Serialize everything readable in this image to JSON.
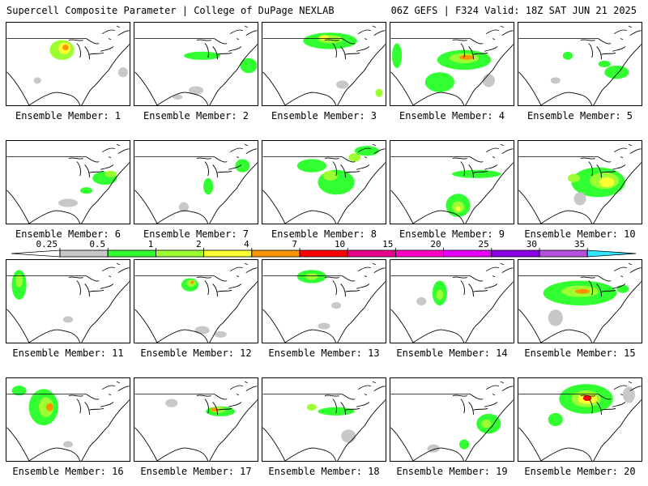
{
  "header": {
    "left": "Supercell Composite Parameter | College of DuPage NEXLAB",
    "right": "06Z GEFS | F324 Valid: 18Z SAT JUN 21 2025"
  },
  "colorbar": {
    "ticks": [
      "0.25",
      "0.5",
      "1",
      "2",
      "4",
      "7",
      "10",
      "15",
      "20",
      "25",
      "30",
      "35"
    ],
    "colors": [
      "#c8c8c8",
      "#32ff32",
      "#9bff32",
      "#ffff32",
      "#ff9600",
      "#ff0000",
      "#e6008c",
      "#ff00c8",
      "#e600ff",
      "#8c00e6",
      "#b450dc",
      "#32e6ff"
    ]
  },
  "members": [
    {
      "label": "Ensemble Member: 1",
      "blobs": [
        [
          0.45,
          0.33,
          0.1,
          0.12,
          2
        ],
        [
          0.47,
          0.31,
          0.05,
          0.07,
          3
        ],
        [
          0.48,
          0.3,
          0.025,
          0.035,
          4
        ],
        [
          0.25,
          0.7,
          0.03,
          0.04,
          0
        ],
        [
          0.95,
          0.6,
          0.04,
          0.06,
          0
        ]
      ]
    },
    {
      "label": "Ensemble Member: 2",
      "blobs": [
        [
          0.55,
          0.4,
          0.15,
          0.05,
          1
        ],
        [
          0.93,
          0.52,
          0.07,
          0.09,
          1
        ],
        [
          0.5,
          0.82,
          0.06,
          0.05,
          0
        ],
        [
          0.35,
          0.9,
          0.04,
          0.03,
          0
        ]
      ]
    },
    {
      "label": "Ensemble Member: 3",
      "blobs": [
        [
          0.55,
          0.22,
          0.22,
          0.1,
          1
        ],
        [
          0.55,
          0.2,
          0.1,
          0.05,
          2
        ],
        [
          0.5,
          0.18,
          0.04,
          0.03,
          3
        ],
        [
          0.95,
          0.85,
          0.03,
          0.05,
          2
        ],
        [
          0.65,
          0.75,
          0.05,
          0.05,
          0
        ]
      ]
    },
    {
      "label": "Ensemble Member: 4",
      "blobs": [
        [
          0.6,
          0.45,
          0.22,
          0.12,
          1
        ],
        [
          0.6,
          0.43,
          0.12,
          0.06,
          2
        ],
        [
          0.62,
          0.42,
          0.06,
          0.03,
          4
        ],
        [
          0.05,
          0.4,
          0.04,
          0.15,
          1
        ],
        [
          0.4,
          0.72,
          0.12,
          0.12,
          1
        ],
        [
          0.8,
          0.7,
          0.05,
          0.08,
          0
        ]
      ]
    },
    {
      "label": "Ensemble Member: 5",
      "blobs": [
        [
          0.4,
          0.4,
          0.04,
          0.05,
          1
        ],
        [
          0.8,
          0.6,
          0.1,
          0.08,
          1
        ],
        [
          0.7,
          0.5,
          0.05,
          0.04,
          1
        ],
        [
          0.3,
          0.7,
          0.04,
          0.04,
          0
        ]
      ]
    },
    {
      "label": "Ensemble Member: 6",
      "blobs": [
        [
          0.8,
          0.45,
          0.1,
          0.08,
          1
        ],
        [
          0.85,
          0.4,
          0.05,
          0.04,
          2
        ],
        [
          0.5,
          0.75,
          0.08,
          0.05,
          0
        ],
        [
          0.65,
          0.6,
          0.05,
          0.04,
          1
        ]
      ]
    },
    {
      "label": "Ensemble Member: 7",
      "blobs": [
        [
          0.88,
          0.3,
          0.06,
          0.08,
          1
        ],
        [
          0.6,
          0.55,
          0.04,
          0.1,
          1
        ],
        [
          0.4,
          0.8,
          0.04,
          0.06,
          0
        ]
      ]
    },
    {
      "label": "Ensemble Member: 8",
      "blobs": [
        [
          0.6,
          0.5,
          0.15,
          0.15,
          1
        ],
        [
          0.55,
          0.42,
          0.06,
          0.06,
          2
        ],
        [
          0.4,
          0.3,
          0.12,
          0.08,
          1
        ],
        [
          0.85,
          0.12,
          0.1,
          0.06,
          1
        ],
        [
          0.75,
          0.2,
          0.05,
          0.05,
          2
        ]
      ]
    },
    {
      "label": "Ensemble Member: 9",
      "blobs": [
        [
          0.55,
          0.78,
          0.1,
          0.14,
          1
        ],
        [
          0.55,
          0.8,
          0.05,
          0.07,
          2
        ],
        [
          0.55,
          0.82,
          0.02,
          0.03,
          3
        ],
        [
          0.7,
          0.4,
          0.2,
          0.05,
          1
        ]
      ]
    },
    {
      "label": "Ensemble Member: 10",
      "blobs": [
        [
          0.65,
          0.5,
          0.22,
          0.18,
          1
        ],
        [
          0.7,
          0.48,
          0.12,
          0.1,
          2
        ],
        [
          0.72,
          0.5,
          0.06,
          0.06,
          3
        ],
        [
          0.45,
          0.45,
          0.05,
          0.05,
          2
        ],
        [
          0.5,
          0.7,
          0.05,
          0.08,
          0
        ]
      ]
    },
    {
      "label": "Ensemble Member: 11",
      "blobs": [
        [
          0.1,
          0.3,
          0.06,
          0.18,
          1
        ],
        [
          0.1,
          0.25,
          0.03,
          0.08,
          2
        ],
        [
          0.5,
          0.72,
          0.04,
          0.04,
          0
        ]
      ]
    },
    {
      "label": "Ensemble Member: 12",
      "blobs": [
        [
          0.45,
          0.3,
          0.07,
          0.08,
          1
        ],
        [
          0.46,
          0.28,
          0.04,
          0.045,
          2
        ],
        [
          0.47,
          0.27,
          0.015,
          0.02,
          4
        ],
        [
          0.55,
          0.85,
          0.06,
          0.05,
          0
        ],
        [
          0.7,
          0.9,
          0.05,
          0.04,
          0
        ]
      ]
    },
    {
      "label": "Ensemble Member: 13",
      "blobs": [
        [
          0.4,
          0.2,
          0.12,
          0.08,
          1
        ],
        [
          0.4,
          0.2,
          0.05,
          0.04,
          2
        ],
        [
          0.6,
          0.55,
          0.04,
          0.04,
          0
        ],
        [
          0.5,
          0.8,
          0.05,
          0.04,
          0
        ]
      ]
    },
    {
      "label": "Ensemble Member: 14",
      "blobs": [
        [
          0.4,
          0.4,
          0.06,
          0.15,
          1
        ],
        [
          0.4,
          0.42,
          0.03,
          0.06,
          2
        ],
        [
          0.25,
          0.5,
          0.04,
          0.05,
          0
        ]
      ]
    },
    {
      "label": "Ensemble Member: 15",
      "blobs": [
        [
          0.5,
          0.4,
          0.3,
          0.15,
          1
        ],
        [
          0.5,
          0.38,
          0.15,
          0.07,
          2
        ],
        [
          0.52,
          0.38,
          0.06,
          0.03,
          4
        ],
        [
          0.85,
          0.35,
          0.05,
          0.05,
          1
        ],
        [
          0.3,
          0.7,
          0.06,
          0.1,
          0
        ]
      ]
    },
    {
      "label": "Ensemble Member: 16",
      "blobs": [
        [
          0.3,
          0.35,
          0.12,
          0.22,
          1
        ],
        [
          0.32,
          0.35,
          0.06,
          0.12,
          2
        ],
        [
          0.35,
          0.35,
          0.03,
          0.05,
          4
        ],
        [
          0.1,
          0.15,
          0.06,
          0.06,
          1
        ],
        [
          0.5,
          0.8,
          0.04,
          0.04,
          0
        ]
      ]
    },
    {
      "label": "Ensemble Member: 17",
      "blobs": [
        [
          0.7,
          0.4,
          0.12,
          0.06,
          1
        ],
        [
          0.68,
          0.38,
          0.06,
          0.04,
          2
        ],
        [
          0.65,
          0.38,
          0.03,
          0.025,
          4
        ],
        [
          0.3,
          0.3,
          0.05,
          0.05,
          0
        ]
      ]
    },
    {
      "label": "Ensemble Member: 18",
      "blobs": [
        [
          0.6,
          0.4,
          0.15,
          0.05,
          1
        ],
        [
          0.4,
          0.35,
          0.04,
          0.04,
          2
        ],
        [
          0.7,
          0.7,
          0.06,
          0.08,
          0
        ]
      ]
    },
    {
      "label": "Ensemble Member: 19",
      "blobs": [
        [
          0.8,
          0.55,
          0.1,
          0.12,
          1
        ],
        [
          0.78,
          0.55,
          0.04,
          0.05,
          2
        ],
        [
          0.6,
          0.8,
          0.04,
          0.06,
          1
        ],
        [
          0.35,
          0.85,
          0.05,
          0.05,
          0
        ]
      ]
    },
    {
      "label": "Ensemble Member: 20",
      "blobs": [
        [
          0.55,
          0.25,
          0.22,
          0.18,
          1
        ],
        [
          0.55,
          0.25,
          0.12,
          0.1,
          2
        ],
        [
          0.56,
          0.25,
          0.08,
          0.06,
          3
        ],
        [
          0.56,
          0.24,
          0.035,
          0.035,
          5
        ],
        [
          0.3,
          0.5,
          0.06,
          0.08,
          1
        ],
        [
          0.9,
          0.2,
          0.05,
          0.1,
          0
        ]
      ]
    }
  ]
}
